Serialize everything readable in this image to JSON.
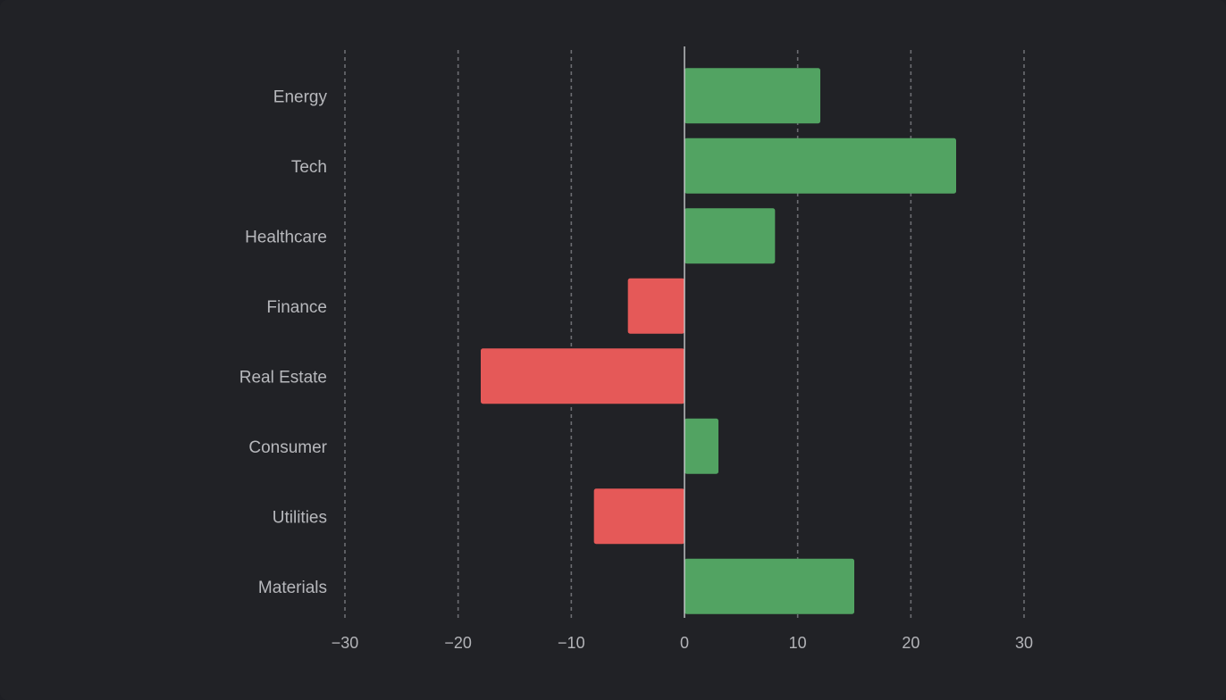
{
  "chart_data": {
    "type": "bar",
    "orientation": "horizontal",
    "categories": [
      "Energy",
      "Tech",
      "Healthcare",
      "Finance",
      "Real Estate",
      "Consumer",
      "Utilities",
      "Materials"
    ],
    "values": [
      12,
      24,
      8,
      -5,
      -18,
      3,
      -8,
      15
    ],
    "xlim": [
      -30,
      30
    ],
    "xticks": [
      -30,
      -20,
      -10,
      0,
      10,
      20,
      30
    ],
    "xtick_labels": [
      "−30",
      "−20",
      "−10",
      "0",
      "10",
      "20",
      "30"
    ],
    "grid": "vertical dashed",
    "positive_color": "#52a362",
    "negative_color": "#e55958",
    "title": "",
    "xlabel": "",
    "ylabel": ""
  }
}
